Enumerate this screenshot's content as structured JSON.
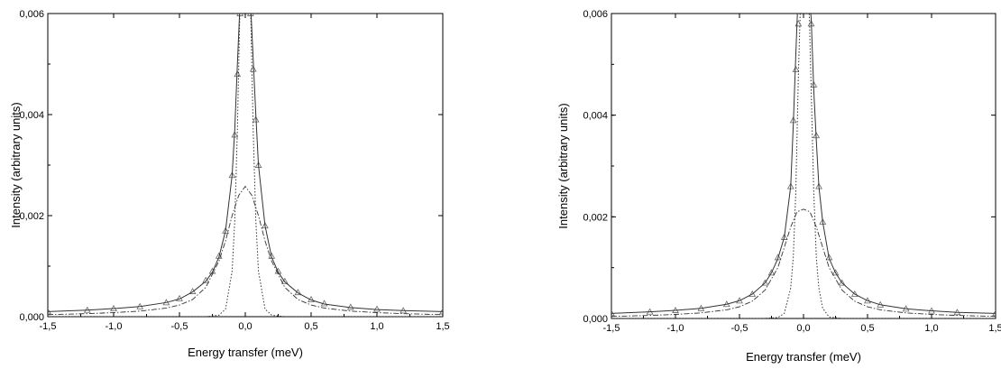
{
  "chart_data": [
    {
      "type": "line",
      "title": "",
      "xlabel": "Energy transfer (meV)",
      "ylabel": "Intensity (arbitrary units)",
      "xlim": [
        -1.5,
        1.5
      ],
      "ylim": [
        0,
        0.006
      ],
      "xticks": [
        -1.5,
        -1.0,
        -0.5,
        0.0,
        0.5,
        1.0,
        1.5
      ],
      "xtick_labels": [
        "-1,5",
        "-1,0",
        "-0,5",
        "0,0",
        "0,5",
        "1,0",
        "1,5"
      ],
      "yticks": [
        0,
        0.002,
        0.004,
        0.006
      ],
      "ytick_labels": [
        "0,000",
        "0,002",
        "0,004",
        "0,006"
      ],
      "grid": false,
      "series": [
        {
          "line_style": "markers (open triangles)",
          "x": [
            -1.5,
            -1.2,
            -1.0,
            -0.8,
            -0.6,
            -0.5,
            -0.4,
            -0.3,
            -0.25,
            -0.2,
            -0.15,
            -0.1,
            -0.08,
            -0.06,
            -0.04,
            -0.02,
            0.02,
            0.04,
            0.06,
            0.08,
            0.1,
            0.15,
            0.2,
            0.25,
            0.3,
            0.4,
            0.5,
            0.6,
            0.8,
            1.0,
            1.2,
            1.5
          ],
          "y": [
            0.0001,
            0.00013,
            0.00016,
            0.0002,
            0.00028,
            0.00036,
            0.0005,
            0.00072,
            0.0009,
            0.0012,
            0.0017,
            0.0028,
            0.0036,
            0.0048,
            0.006,
            0.0062,
            0.0062,
            0.006,
            0.0049,
            0.0039,
            0.003,
            0.0018,
            0.0012,
            0.0009,
            0.0007,
            0.00048,
            0.00034,
            0.00026,
            0.00019,
            0.00015,
            0.00012,
            0.0001
          ]
        },
        {
          "line_style": "solid (total fit)",
          "x": [
            -1.5,
            -1.2,
            -1.0,
            -0.8,
            -0.6,
            -0.5,
            -0.4,
            -0.3,
            -0.25,
            -0.2,
            -0.15,
            -0.1,
            -0.08,
            -0.06,
            -0.04,
            -0.02,
            0.0,
            0.02,
            0.04,
            0.06,
            0.08,
            0.1,
            0.15,
            0.2,
            0.25,
            0.3,
            0.4,
            0.5,
            0.6,
            0.8,
            1.0,
            1.2,
            1.5
          ],
          "y": [
            0.0001,
            0.00013,
            0.00016,
            0.0002,
            0.00028,
            0.00035,
            0.00049,
            0.0007,
            0.00088,
            0.00118,
            0.0017,
            0.0028,
            0.0037,
            0.005,
            0.0062,
            0.0065,
            0.0065,
            0.0065,
            0.0062,
            0.0051,
            0.004,
            0.003,
            0.0018,
            0.00118,
            0.00088,
            0.00069,
            0.00047,
            0.00033,
            0.00025,
            0.00018,
            0.00014,
            0.00012,
            0.0001
          ]
        },
        {
          "line_style": "dotted (narrow elastic peak)",
          "x": [
            -1.5,
            -0.3,
            -0.2,
            -0.15,
            -0.1,
            -0.08,
            -0.06,
            -0.04,
            -0.02,
            0.0,
            0.02,
            0.04,
            0.06,
            0.08,
            0.1,
            0.15,
            0.2,
            0.3,
            1.5
          ],
          "y": [
            0,
            0,
            3e-05,
            0.00015,
            0.0009,
            0.0019,
            0.0037,
            0.0062,
            0.0065,
            0.0065,
            0.0065,
            0.0062,
            0.0037,
            0.0019,
            0.0009,
            0.00015,
            3e-05,
            0,
            0
          ]
        },
        {
          "line_style": "dash-dot (broad quasielastic component)",
          "x": [
            -1.5,
            -1.2,
            -1.0,
            -0.8,
            -0.6,
            -0.5,
            -0.4,
            -0.3,
            -0.2,
            -0.15,
            -0.1,
            -0.05,
            0.0,
            0.05,
            0.1,
            0.15,
            0.2,
            0.3,
            0.4,
            0.5,
            0.6,
            0.8,
            1.0,
            1.2,
            1.5
          ],
          "y": [
            4e-05,
            6e-05,
            8e-05,
            0.00011,
            0.00017,
            0.00023,
            0.00034,
            0.00058,
            0.0011,
            0.0015,
            0.002,
            0.0024,
            0.00258,
            0.0024,
            0.002,
            0.0015,
            0.0011,
            0.00058,
            0.00034,
            0.00023,
            0.00017,
            0.00011,
            8e-05,
            6e-05,
            4e-05
          ]
        }
      ]
    },
    {
      "type": "line",
      "title": "",
      "xlabel": "Energy transfer (meV)",
      "ylabel": "Intensity (arbitrary units)",
      "xlim": [
        -1.5,
        1.5
      ],
      "ylim": [
        0,
        0.006
      ],
      "xticks": [
        -1.5,
        -1.0,
        -0.5,
        0.0,
        0.5,
        1.0,
        1.5
      ],
      "xtick_labels": [
        "-1,5",
        "-1,0",
        "-0,5",
        "0,0",
        "0,5",
        "1,0",
        "1,5"
      ],
      "yticks": [
        0,
        0.002,
        0.004,
        0.006
      ],
      "ytick_labels": [
        "0,000",
        "0,002",
        "0,004",
        "0,006"
      ],
      "grid": false,
      "series": [
        {
          "line_style": "markers (open triangles)",
          "x": [
            -1.5,
            -1.2,
            -1.0,
            -0.8,
            -0.6,
            -0.5,
            -0.4,
            -0.3,
            -0.25,
            -0.2,
            -0.15,
            -0.1,
            -0.08,
            -0.06,
            -0.04,
            0.06,
            0.08,
            0.1,
            0.12,
            0.15,
            0.2,
            0.25,
            0.3,
            0.4,
            0.5,
            0.6,
            0.8,
            1.0,
            1.2,
            1.5
          ],
          "y": [
            0.0001,
            0.00013,
            0.00016,
            0.0002,
            0.00028,
            0.00035,
            0.00048,
            0.0007,
            0.0009,
            0.0012,
            0.0016,
            0.0026,
            0.0039,
            0.0049,
            0.0058,
            0.0058,
            0.0046,
            0.0036,
            0.0026,
            0.0019,
            0.0012,
            0.0009,
            0.0007,
            0.00048,
            0.00035,
            0.00027,
            0.00019,
            0.00015,
            0.00012,
            0.0001
          ]
        },
        {
          "line_style": "solid (total fit)",
          "x": [
            -1.5,
            -1.2,
            -1.0,
            -0.8,
            -0.6,
            -0.5,
            -0.4,
            -0.3,
            -0.25,
            -0.2,
            -0.15,
            -0.1,
            -0.08,
            -0.06,
            -0.04,
            -0.02,
            0.0,
            0.02,
            0.04,
            0.06,
            0.08,
            0.1,
            0.12,
            0.15,
            0.2,
            0.25,
            0.3,
            0.4,
            0.5,
            0.6,
            0.8,
            1.0,
            1.2,
            1.5
          ],
          "y": [
            0.0001,
            0.00013,
            0.00016,
            0.0002,
            0.00028,
            0.00035,
            0.00048,
            0.0007,
            0.0009,
            0.00118,
            0.0016,
            0.0026,
            0.0038,
            0.0052,
            0.0065,
            0.0065,
            0.0065,
            0.0065,
            0.0065,
            0.0059,
            0.0045,
            0.0035,
            0.0026,
            0.0019,
            0.00118,
            0.0009,
            0.0007,
            0.00048,
            0.00035,
            0.00027,
            0.00019,
            0.00015,
            0.00012,
            0.0001
          ]
        },
        {
          "line_style": "dotted (narrow elastic peak)",
          "x": [
            -1.5,
            -0.3,
            -0.2,
            -0.15,
            -0.1,
            -0.08,
            -0.06,
            -0.04,
            -0.02,
            0.0,
            0.02,
            0.04,
            0.06,
            0.08,
            0.1,
            0.12,
            0.15,
            0.2,
            0.3,
            1.5
          ],
          "y": [
            0,
            0,
            2e-05,
            0.0001,
            0.0006,
            0.0012,
            0.0025,
            0.0048,
            0.0065,
            0.0065,
            0.0065,
            0.0065,
            0.0045,
            0.0025,
            0.0012,
            0.0006,
            0.0002,
            3e-05,
            0,
            0
          ]
        },
        {
          "line_style": "dash-dot (broad quasielastic component)",
          "x": [
            -1.5,
            -1.2,
            -1.0,
            -0.8,
            -0.6,
            -0.5,
            -0.4,
            -0.3,
            -0.2,
            -0.15,
            -0.1,
            -0.05,
            0.0,
            0.05,
            0.1,
            0.15,
            0.2,
            0.3,
            0.4,
            0.5,
            0.6,
            0.8,
            1.0,
            1.2,
            1.5
          ],
          "y": [
            4e-05,
            6e-05,
            8e-05,
            0.00011,
            0.00017,
            0.00023,
            0.00034,
            0.00056,
            0.001,
            0.0014,
            0.0018,
            0.0021,
            0.00215,
            0.0021,
            0.0018,
            0.0014,
            0.001,
            0.00056,
            0.00034,
            0.00023,
            0.00017,
            0.00011,
            8e-05,
            6e-05,
            4e-05
          ]
        }
      ]
    }
  ]
}
